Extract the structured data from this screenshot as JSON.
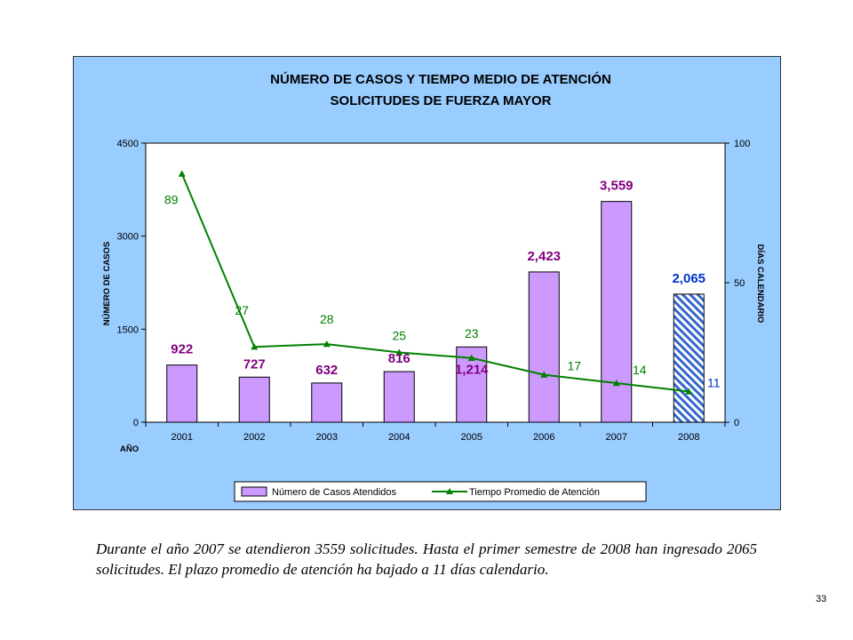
{
  "chart_data": {
    "type": "bar",
    "title": [
      "NÚMERO DE CASOS Y TIEMPO MEDIO DE ATENCIÓN",
      "SOLICITUDES DE FUERZA MAYOR"
    ],
    "xlabel": "AÑO",
    "ylabel": "NÚMERO DE CASOS",
    "y2label": "DÍAS CALENDARIO",
    "categories": [
      "2001",
      "2002",
      "2003",
      "2004",
      "2005",
      "2006",
      "2007",
      "2008"
    ],
    "ylim": [
      0,
      4500
    ],
    "yticks": [
      "0",
      "1500",
      "3000",
      "4500"
    ],
    "y2lim": [
      0,
      100
    ],
    "y2ticks": [
      "0",
      "50",
      "100"
    ],
    "legend_position": "bottom",
    "series": [
      {
        "name": "Número de Casos Atendidos",
        "type": "bar",
        "axis": "left",
        "color": "#cc99ff",
        "label_color": "#800080",
        "values": [
          922,
          727,
          632,
          816,
          1214,
          2423,
          3559,
          2065
        ],
        "labels": [
          "922",
          "727",
          "632",
          "816",
          "1,214",
          "2,423",
          "3,559",
          "2,065"
        ],
        "hatched_last": true,
        "last_label_color": "#0033cc"
      },
      {
        "name": "Tiempo Promedio de Atención",
        "type": "line",
        "axis": "right",
        "color": "#008000",
        "marker": "triangle",
        "values": [
          89,
          27,
          28,
          25,
          23,
          17,
          14,
          11
        ],
        "labels": [
          "89",
          "27",
          "28",
          "25",
          "23",
          "17",
          "14",
          "11"
        ],
        "last_label_color": "#0033cc"
      }
    ]
  },
  "caption": "Durante el año 2007 se atendieron 3559 solicitudes. Hasta el primer semestre de 2008 han ingresado 2065 solicitudes. El plazo promedio de atención ha bajado a 11 días calendario.",
  "page_number": "33"
}
